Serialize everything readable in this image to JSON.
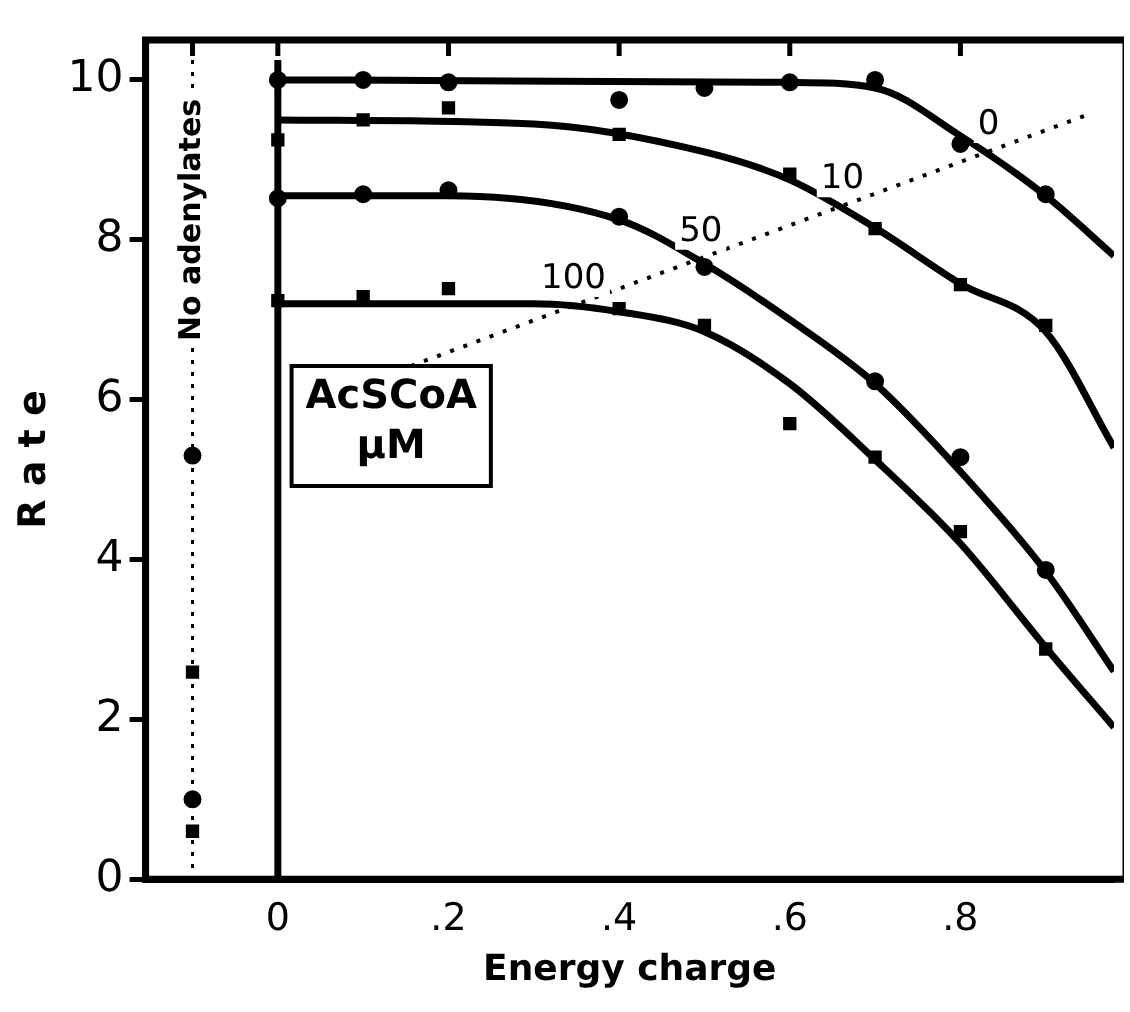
{
  "chart_data": {
    "type": "scatter",
    "xlabel": "Energy charge",
    "ylabel": "R a t e",
    "xlim": [
      -0.155,
      0.98
    ],
    "ylim": [
      0,
      10.5
    ],
    "xticks": [
      {
        "value": -0.1,
        "label": null
      },
      0,
      {
        "value": 0.2,
        "label": ".2"
      },
      {
        "value": 0.4,
        "label": ".4"
      },
      {
        "value": 0.6,
        "label": ".6"
      },
      {
        "value": 0.8,
        "label": ".8"
      }
    ],
    "yticks": [
      0,
      2,
      4,
      6,
      8,
      10
    ],
    "grid": false,
    "legend": false,
    "marker": "circle",
    "series": [
      {
        "color": "#000000",
        "x": [
          -0.1,
          0,
          0.1,
          0.2,
          0.4,
          0.5,
          0.6,
          0.7,
          0.8,
          0.9
        ],
        "values": [
          5.3,
          10.0,
          10.0,
          9.97,
          9.75,
          9.9,
          9.97,
          10.0,
          9.2,
          8.57
        ]
      },
      {
        "marker": "square",
        "color": "#000000",
        "x": [
          -0.1,
          0,
          0.1,
          0.2,
          0.4,
          0.6,
          0.7,
          0.8,
          0.9
        ],
        "values": [
          2.59,
          9.25,
          9.5,
          9.65,
          9.32,
          8.82,
          8.14,
          7.44,
          6.93
        ]
      },
      {
        "color": "#000000",
        "x": [
          -0.1,
          0,
          0.1,
          0.2,
          0.4,
          0.5,
          0.7,
          0.8,
          0.9
        ],
        "values": [
          1.0,
          8.52,
          8.57,
          8.62,
          8.29,
          7.66,
          6.23,
          5.28,
          3.87
        ]
      },
      {
        "marker": "square",
        "color": "#000000",
        "x": [
          -0.1,
          0,
          0.1,
          0.2,
          0.4,
          0.5,
          0.6,
          0.7,
          0.8,
          0.9
        ],
        "values": [
          0.6,
          7.24,
          7.29,
          7.39,
          7.14,
          6.93,
          5.7,
          5.28,
          4.35,
          2.88
        ]
      },
      {
        "type": "line",
        "name": "0",
        "marker": "none",
        "color": "#000000",
        "x": [
          0,
          0.6,
          0.7,
          0.8,
          0.9,
          0.98
        ],
        "values": [
          10.0,
          9.97,
          9.9,
          9.3,
          8.55,
          7.8
        ]
      },
      {
        "type": "line",
        "name": "10",
        "marker": "none",
        "color": "#000000",
        "x": [
          0,
          0.3,
          0.5,
          0.6,
          0.7,
          0.8,
          0.9,
          0.98
        ],
        "values": [
          9.5,
          9.45,
          9.1,
          8.75,
          8.15,
          7.45,
          6.85,
          5.4
        ]
      },
      {
        "type": "line",
        "name": "50",
        "marker": "none",
        "color": "#000000",
        "x": [
          0,
          0.2,
          0.4,
          0.5,
          0.6,
          0.7,
          0.8,
          0.9,
          0.98
        ],
        "values": [
          8.55,
          8.55,
          8.25,
          7.7,
          7.0,
          6.2,
          5.1,
          3.85,
          2.6
        ]
      },
      {
        "type": "line",
        "name": "100",
        "marker": "none",
        "color": "#000000",
        "x": [
          0,
          0.3,
          0.4,
          0.5,
          0.6,
          0.7,
          0.8,
          0.9,
          0.98
        ],
        "values": [
          7.2,
          7.2,
          7.1,
          6.85,
          6.2,
          5.25,
          4.2,
          2.9,
          1.9
        ]
      }
    ],
    "ref_lines": [
      {
        "axis": "x",
        "value": -0.1,
        "label": "No adenylates",
        "line_style": "dotted"
      },
      {
        "axis": "x",
        "value": 0,
        "label": null,
        "line_style": "solid"
      }
    ],
    "annotations": [
      "AcSCoA\nµM"
    ]
  }
}
